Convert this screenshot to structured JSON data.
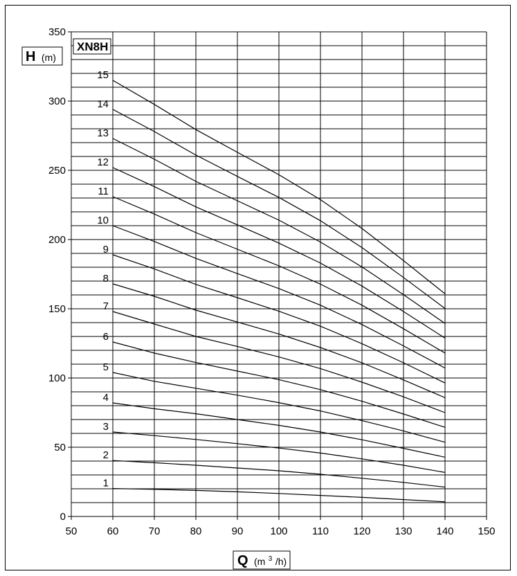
{
  "chart_data": {
    "type": "line",
    "title": "XN8H",
    "ylabel_symbol": "H",
    "ylabel_unit": "(m)",
    "xlabel_symbol": "Q",
    "xlabel_unit_base": "(m",
    "xlabel_unit_sup": "3",
    "xlabel_unit_tail": "/h)",
    "xlim": [
      50,
      150
    ],
    "ylim": [
      0,
      350
    ],
    "x_ticks": [
      "50",
      "60",
      "70",
      "80",
      "90",
      "100",
      "110",
      "120",
      "130",
      "140",
      "150"
    ],
    "y_ticks": [
      "0",
      "50",
      "100",
      "150",
      "200",
      "250",
      "300",
      "350"
    ],
    "grid": true,
    "x": [
      60,
      70,
      80,
      90,
      100,
      110,
      120,
      130,
      140
    ],
    "series": [
      {
        "name": "1",
        "values": [
          20.2,
          19.6,
          18.8,
          17.8,
          16.6,
          15.2,
          13.8,
          12.2,
          10.6
        ]
      },
      {
        "name": "2",
        "values": [
          40.4,
          38.8,
          37.0,
          35.0,
          33.0,
          30.5,
          27.6,
          24.6,
          21.2
        ]
      },
      {
        "name": "3",
        "values": [
          61.0,
          58.4,
          55.6,
          52.6,
          49.4,
          45.8,
          41.6,
          37.0,
          31.8
        ]
      },
      {
        "name": "4",
        "values": [
          82.0,
          77.8,
          74.2,
          70.0,
          65.8,
          61.0,
          55.4,
          49.2,
          42.8
        ]
      },
      {
        "name": "5",
        "values": [
          104.0,
          97.6,
          92.6,
          87.6,
          82.2,
          76.2,
          69.2,
          61.8,
          53.6
        ]
      },
      {
        "name": "6",
        "values": [
          126.0,
          118.0,
          111.2,
          105.0,
          98.8,
          91.6,
          83.2,
          74.0,
          64.4
        ]
      },
      {
        "name": "7",
        "values": [
          148.0,
          139.0,
          130.0,
          122.8,
          115.2,
          106.8,
          97.0,
          86.4,
          75.0
        ]
      },
      {
        "name": "8",
        "values": [
          168.0,
          159.0,
          149.0,
          140.4,
          131.8,
          122.0,
          111.0,
          98.6,
          85.8
        ]
      },
      {
        "name": "9",
        "values": [
          189.0,
          178.8,
          167.6,
          158.0,
          148.2,
          137.4,
          124.8,
          111.0,
          96.4
        ]
      },
      {
        "name": "10",
        "values": [
          210.0,
          198.6,
          186.4,
          175.4,
          164.6,
          152.6,
          138.6,
          123.2,
          107.2
        ]
      },
      {
        "name": "11",
        "values": [
          231.0,
          218.4,
          205.0,
          193.0,
          181.0,
          167.8,
          152.6,
          135.6,
          118.0
        ]
      },
      {
        "name": "12",
        "values": [
          252.0,
          238.2,
          223.6,
          210.6,
          197.4,
          183.0,
          166.4,
          148.0,
          128.8
        ]
      },
      {
        "name": "13",
        "values": [
          273.0,
          258.0,
          242.0,
          228.0,
          214.0,
          198.2,
          180.2,
          160.2,
          139.4
        ]
      },
      {
        "name": "14",
        "values": [
          294.0,
          278.0,
          261.0,
          245.6,
          230.4,
          213.6,
          194.2,
          172.6,
          150.2
        ]
      },
      {
        "name": "15",
        "values": [
          315.0,
          297.6,
          279.4,
          263.0,
          246.8,
          228.8,
          208.0,
          184.8,
          160.8
        ]
      }
    ]
  }
}
